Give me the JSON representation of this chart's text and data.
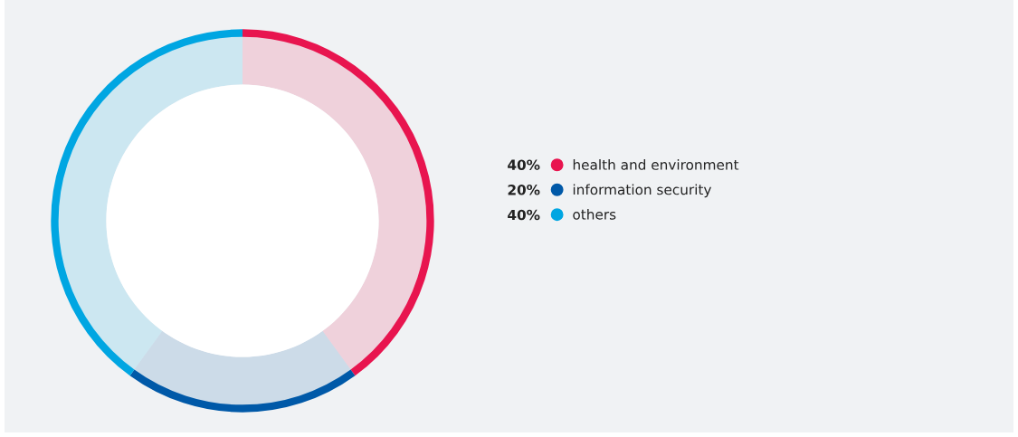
{
  "chart_data": {
    "type": "donut",
    "categories": [
      "health and environment",
      "information security",
      "others"
    ],
    "values": [
      40,
      20,
      40
    ],
    "colors": [
      "#e8154f",
      "#0059a8",
      "#00a6e2"
    ],
    "value_labels": [
      "40%",
      "20%",
      "40%"
    ],
    "legend": "right"
  }
}
